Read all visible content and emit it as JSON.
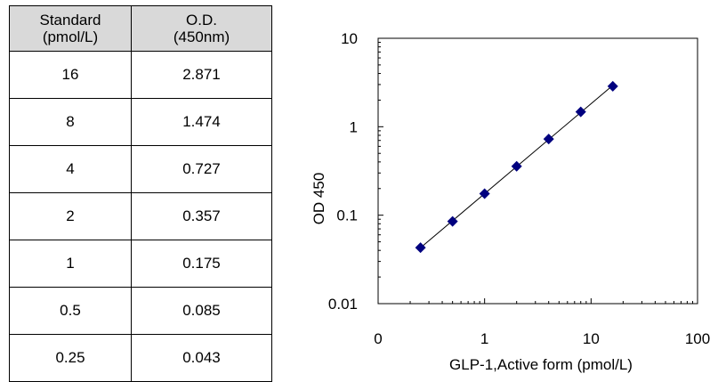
{
  "table": {
    "headers": [
      [
        "Standard",
        "(pmol/L)"
      ],
      [
        "O.D.",
        "(450nm)"
      ]
    ],
    "rows": [
      [
        "16",
        "2.871"
      ],
      [
        "8",
        "1.474"
      ],
      [
        "4",
        "0.727"
      ],
      [
        "2",
        "0.357"
      ],
      [
        "1",
        "0.175"
      ],
      [
        "0.5",
        "0.085"
      ],
      [
        "0.25",
        "0.043"
      ]
    ]
  },
  "chart_data": {
    "type": "scatter",
    "title": "",
    "xlabel": "GLP-1,Active form  (pmol/L)",
    "ylabel": "OD 450",
    "x_scale": "log",
    "y_scale": "log",
    "xlim": [
      0.1,
      100
    ],
    "ylim": [
      0.01,
      10
    ],
    "x_tick_values": [
      0.1,
      1,
      10,
      100
    ],
    "x_tick_labels": [
      "0",
      "1",
      "10",
      "100"
    ],
    "y_tick_values": [
      0.01,
      0.1,
      1,
      10
    ],
    "y_tick_labels": [
      "0.01",
      "0.1",
      "1",
      "10"
    ],
    "grid": false,
    "legend": "none",
    "trendline": true,
    "series": [
      {
        "x": [
          16,
          8,
          4,
          2,
          1,
          0.5,
          0.25
        ],
        "y": [
          2.871,
          1.474,
          0.727,
          0.357,
          0.175,
          0.085,
          0.043
        ],
        "marker": "diamond",
        "color": "#00007f"
      }
    ]
  }
}
